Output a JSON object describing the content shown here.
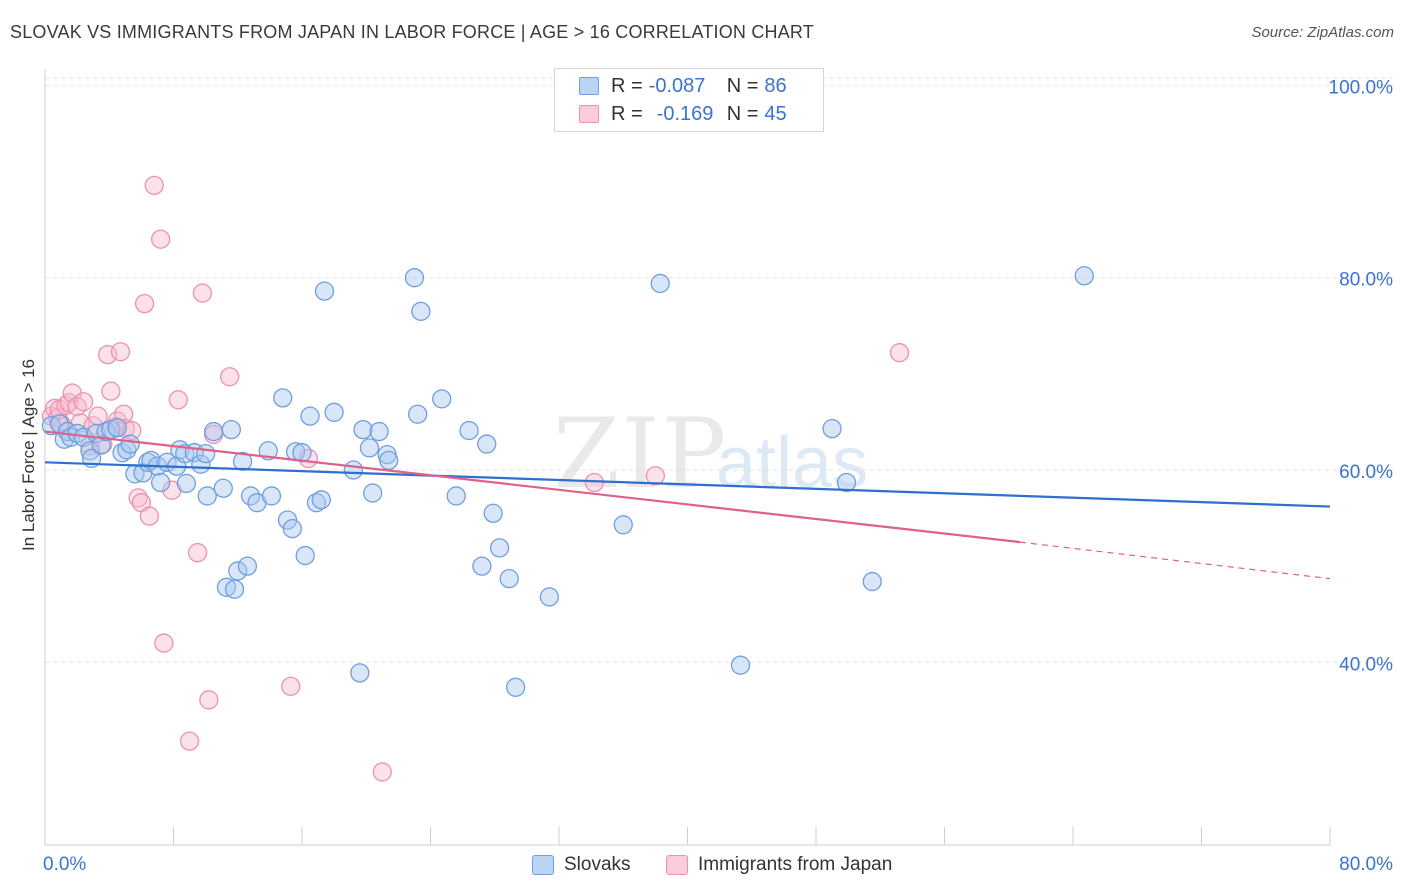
{
  "header": {
    "title": "SLOVAK VS IMMIGRANTS FROM JAPAN IN LABOR FORCE | AGE > 16 CORRELATION CHART",
    "source": "Source: ZipAtlas.com"
  },
  "watermark": {
    "bold": "ZIP",
    "light": "atlas"
  },
  "colors": {
    "blue_fill": "#a9c8f0",
    "blue_stroke": "#6f9fe0",
    "blue_line": "#2e6fd0",
    "pink_fill": "#f7bcd0",
    "pink_stroke": "#ec92b0",
    "pink_line": "#e0608c",
    "tick_text": "#3a73d0",
    "grid": "#e3e3e3"
  },
  "legend": {
    "rows": [
      {
        "r_label": "R =",
        "r_value": "-0.087",
        "n_label": "N =",
        "n_value": "86"
      },
      {
        "r_label": "R =",
        "r_value": "-0.169",
        "n_label": "N =",
        "n_value": "45"
      }
    ]
  },
  "chart_data": {
    "type": "scatter",
    "title": "SLOVAK VS IMMIGRANTS FROM JAPAN IN LABOR FORCE | AGE > 16 CORRELATION CHART",
    "xlabel": "",
    "ylabel": "In Labor Force | Age > 16",
    "xlim": [
      0,
      80
    ],
    "ylim": [
      21.0,
      101.6
    ],
    "x_tick_labels": [
      "0.0%",
      "80.0%"
    ],
    "y_ticks": [
      40,
      60,
      80,
      100
    ],
    "y_tick_labels": [
      "40.0%",
      "60.0%",
      "80.0%",
      "100.0%"
    ],
    "grid": true,
    "legend_position": "top-center",
    "series": [
      {
        "name": "Slovaks",
        "color": "#6f9fe0",
        "trend": {
          "x0": 0,
          "y0": 60.8,
          "x1": 80,
          "y1": 56.2
        },
        "points": [
          [
            0.4,
            64.6
          ],
          [
            0.9,
            64.8
          ],
          [
            1.2,
            63.2
          ],
          [
            1.4,
            64.0
          ],
          [
            1.6,
            63.4
          ],
          [
            2.0,
            63.8
          ],
          [
            2.4,
            63.4
          ],
          [
            2.8,
            62.0
          ],
          [
            2.9,
            61.2
          ],
          [
            3.2,
            63.8
          ],
          [
            3.5,
            62.6
          ],
          [
            3.8,
            64.0
          ],
          [
            4.1,
            64.2
          ],
          [
            4.5,
            64.4
          ],
          [
            4.8,
            61.8
          ],
          [
            5.1,
            62.1
          ],
          [
            5.3,
            62.7
          ],
          [
            5.6,
            59.6
          ],
          [
            6.1,
            59.7
          ],
          [
            6.4,
            60.8
          ],
          [
            6.6,
            61.0
          ],
          [
            7.0,
            60.4
          ],
          [
            7.2,
            58.7
          ],
          [
            7.6,
            60.8
          ],
          [
            8.2,
            60.4
          ],
          [
            8.4,
            62.1
          ],
          [
            8.7,
            61.7
          ],
          [
            8.8,
            58.6
          ],
          [
            9.3,
            61.8
          ],
          [
            9.7,
            60.6
          ],
          [
            10.0,
            61.7
          ],
          [
            10.1,
            57.3
          ],
          [
            10.5,
            64.0
          ],
          [
            11.1,
            58.1
          ],
          [
            11.3,
            47.8
          ],
          [
            11.6,
            64.2
          ],
          [
            11.8,
            47.6
          ],
          [
            12.0,
            49.5
          ],
          [
            12.3,
            60.9
          ],
          [
            12.6,
            50.0
          ],
          [
            12.8,
            57.3
          ],
          [
            13.2,
            56.6
          ],
          [
            13.9,
            62.0
          ],
          [
            14.1,
            57.3
          ],
          [
            14.8,
            67.5
          ],
          [
            15.1,
            54.8
          ],
          [
            15.4,
            53.9
          ],
          [
            15.6,
            61.9
          ],
          [
            16.0,
            61.8
          ],
          [
            16.2,
            51.1
          ],
          [
            16.5,
            65.6
          ],
          [
            16.9,
            56.6
          ],
          [
            17.2,
            56.9
          ],
          [
            17.4,
            78.6
          ],
          [
            18.0,
            66.0
          ],
          [
            19.2,
            60.0
          ],
          [
            19.6,
            38.9
          ],
          [
            19.8,
            64.2
          ],
          [
            20.2,
            62.3
          ],
          [
            20.4,
            57.6
          ],
          [
            20.8,
            64.0
          ],
          [
            21.3,
            61.6
          ],
          [
            21.4,
            61.0
          ],
          [
            23.0,
            80.0
          ],
          [
            23.2,
            65.8
          ],
          [
            23.4,
            76.5
          ],
          [
            24.7,
            67.4
          ],
          [
            25.6,
            57.3
          ],
          [
            26.4,
            64.1
          ],
          [
            27.2,
            50.0
          ],
          [
            27.5,
            62.7
          ],
          [
            27.9,
            55.5
          ],
          [
            28.3,
            51.9
          ],
          [
            28.9,
            48.7
          ],
          [
            29.3,
            37.4
          ],
          [
            31.4,
            46.8
          ],
          [
            36.0,
            54.3
          ],
          [
            38.3,
            79.4
          ],
          [
            43.3,
            39.7
          ],
          [
            49.0,
            64.3
          ],
          [
            49.9,
            58.7
          ],
          [
            51.5,
            48.4
          ],
          [
            64.7,
            80.2
          ]
        ]
      },
      {
        "name": "Immigrants from Japan",
        "color": "#ec92b0",
        "trend": {
          "x0": 0,
          "y0": 64.0,
          "x1": 60.7,
          "y1": 52.5,
          "dash_x1": 80,
          "dash_y1": 48.7
        },
        "points": [
          [
            0.4,
            65.6
          ],
          [
            0.6,
            66.4
          ],
          [
            0.8,
            65.4
          ],
          [
            0.9,
            66.3
          ],
          [
            1.0,
            64.8
          ],
          [
            1.3,
            66.7
          ],
          [
            1.5,
            67.0
          ],
          [
            1.7,
            68.0
          ],
          [
            2.0,
            66.6
          ],
          [
            2.2,
            64.9
          ],
          [
            2.4,
            67.1
          ],
          [
            2.8,
            62.5
          ],
          [
            3.0,
            64.6
          ],
          [
            3.3,
            65.6
          ],
          [
            3.6,
            62.7
          ],
          [
            3.9,
            72.0
          ],
          [
            4.1,
            68.2
          ],
          [
            4.4,
            64.5
          ],
          [
            4.5,
            65.1
          ],
          [
            4.7,
            72.3
          ],
          [
            4.9,
            65.8
          ],
          [
            5.0,
            64.3
          ],
          [
            5.4,
            64.1
          ],
          [
            5.8,
            57.1
          ],
          [
            6.0,
            56.6
          ],
          [
            6.2,
            77.3
          ],
          [
            6.5,
            55.2
          ],
          [
            6.8,
            89.6
          ],
          [
            7.2,
            84.0
          ],
          [
            7.4,
            42.0
          ],
          [
            7.9,
            57.9
          ],
          [
            8.3,
            67.3
          ],
          [
            9.0,
            31.8
          ],
          [
            9.5,
            51.4
          ],
          [
            9.8,
            78.4
          ],
          [
            10.2,
            36.1
          ],
          [
            10.5,
            63.7
          ],
          [
            11.5,
            69.7
          ],
          [
            15.3,
            37.5
          ],
          [
            16.4,
            61.2
          ],
          [
            21.0,
            28.6
          ],
          [
            34.2,
            58.7
          ],
          [
            38.0,
            59.4
          ],
          [
            53.2,
            72.2
          ]
        ]
      }
    ]
  },
  "bottom_legend": {
    "items": [
      {
        "label": "Slovaks"
      },
      {
        "label": "Immigrants from Japan"
      }
    ]
  }
}
